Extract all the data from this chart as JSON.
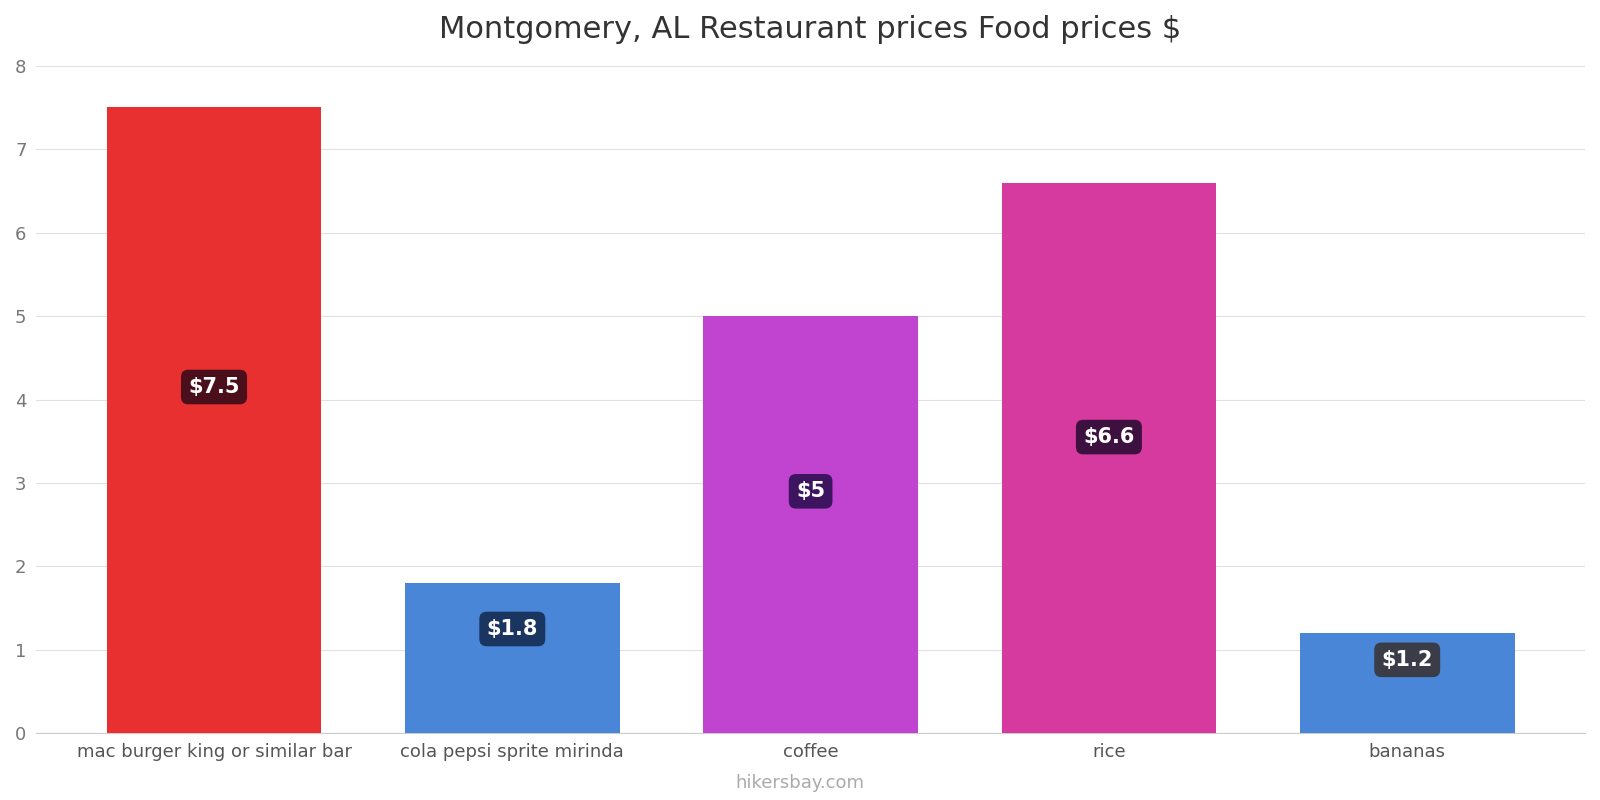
{
  "title": "Montgomery, AL Restaurant prices Food prices $",
  "categories": [
    "mac burger king or similar bar",
    "cola pepsi sprite mirinda",
    "coffee",
    "rice",
    "bananas"
  ],
  "values": [
    7.5,
    1.8,
    5.0,
    6.6,
    1.2
  ],
  "bar_colors": [
    "#e83030",
    "#4a86d8",
    "#c044d0",
    "#d63a9e",
    "#4a86d8"
  ],
  "label_box_colors": [
    "#4a0f1a",
    "#1a3560",
    "#3d1460",
    "#3d1040",
    "#3a3d48"
  ],
  "labels": [
    "$7.5",
    "$1.8",
    "$5",
    "$6.6",
    "$1.2"
  ],
  "label_y_positions": [
    4.15,
    1.25,
    2.9,
    3.55,
    0.88
  ],
  "ylim": [
    0,
    8
  ],
  "yticks": [
    0,
    1,
    2,
    3,
    4,
    5,
    6,
    7,
    8
  ],
  "watermark": "hikersbay.com",
  "background_color": "#ffffff",
  "title_fontsize": 22,
  "tick_fontsize": 13,
  "watermark_fontsize": 13,
  "bar_width": 0.72
}
